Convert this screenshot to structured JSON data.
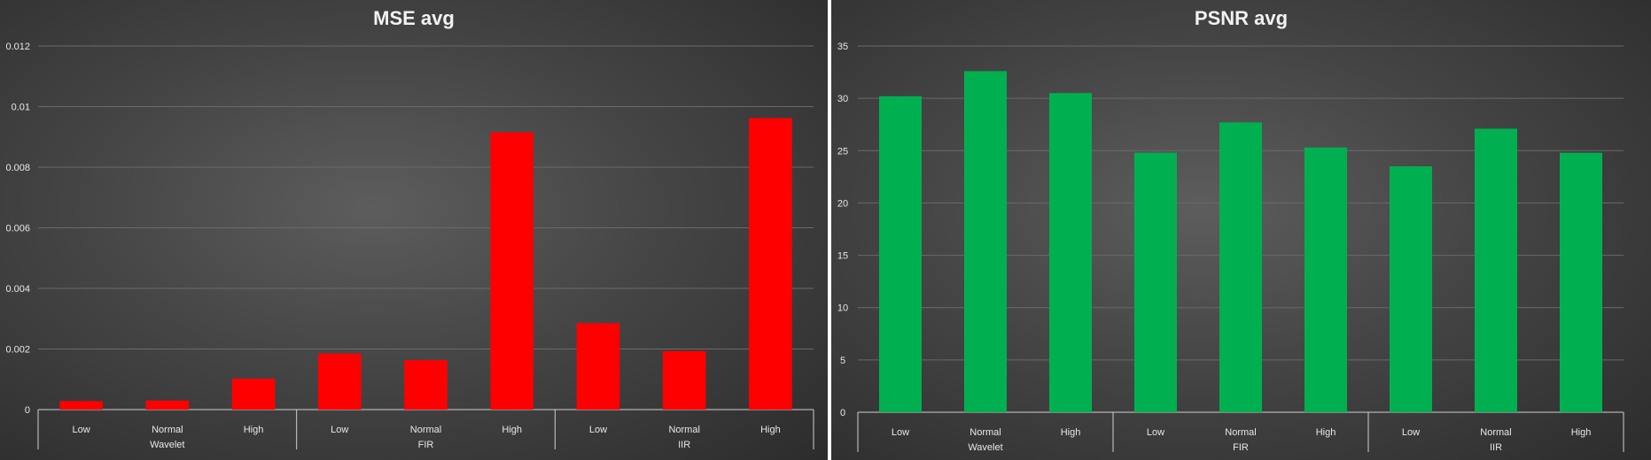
{
  "chart_data": [
    {
      "type": "bar",
      "title": "MSE avg",
      "groups": [
        "Wavelet",
        "FIR",
        "IIR"
      ],
      "categories": [
        "Low",
        "Normal",
        "High",
        "Low",
        "Normal",
        "High",
        "Low",
        "Normal",
        "High"
      ],
      "series": [
        {
          "values": [
            0.00028,
            0.0003,
            0.00102,
            0.00185,
            0.00163,
            0.00915,
            0.00285,
            0.00193,
            0.00962
          ]
        }
      ],
      "yticks": [
        "0",
        "0.002",
        "0.004",
        "0.006",
        "0.008",
        "0.01",
        "0.012"
      ],
      "ylim": [
        0,
        0.012
      ],
      "grid": true,
      "colors": {
        "bar": "#ff0000"
      }
    },
    {
      "type": "bar",
      "title": "PSNR avg",
      "groups": [
        "Wavelet",
        "FIR",
        "IIR"
      ],
      "categories": [
        "Low",
        "Normal",
        "High",
        "Low",
        "Normal",
        "High",
        "Low",
        "Normal",
        "High"
      ],
      "series": [
        {
          "values": [
            30.2,
            32.6,
            30.5,
            24.8,
            27.7,
            25.3,
            23.5,
            27.1,
            24.8
          ]
        }
      ],
      "yticks": [
        "0",
        "5",
        "10",
        "15",
        "20",
        "25",
        "30",
        "35"
      ],
      "ylim": [
        0,
        35
      ],
      "grid": true,
      "colors": {
        "bar": "#00b050"
      }
    }
  ]
}
